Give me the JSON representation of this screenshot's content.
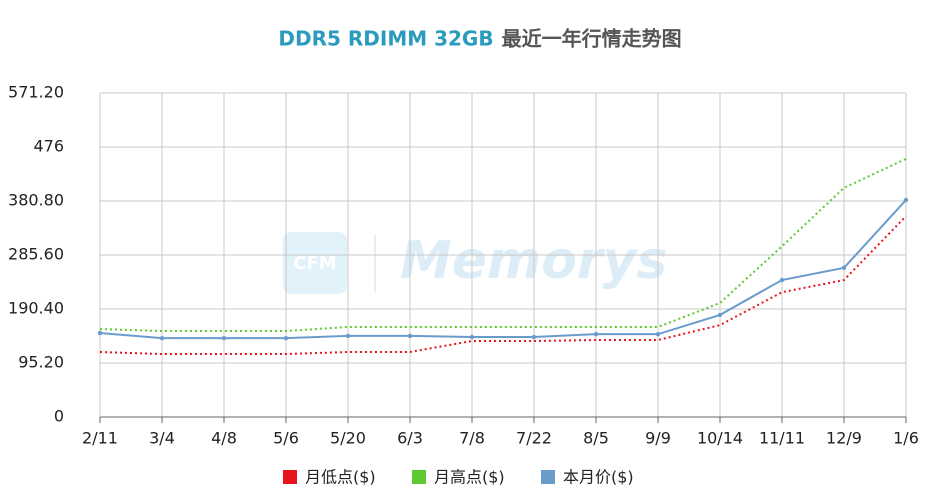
{
  "chart_data": {
    "type": "line",
    "title": [
      "DDR5 RDIMM 32GB",
      "最近一年行情走势图"
    ],
    "title_colors": [
      "#2a9bbf",
      "#555555"
    ],
    "watermark": [
      "CFM",
      "Memorys"
    ],
    "categories": [
      "2/11",
      "3/4",
      "4/8",
      "5/6",
      "5/20",
      "6/3",
      "7/8",
      "7/22",
      "8/5",
      "9/9",
      "10/14",
      "11/11",
      "12/9",
      "1/6"
    ],
    "series": [
      {
        "name": "月低点($)",
        "color": "#e8141b",
        "dashed": true,
        "markers": false,
        "values": [
          114.6,
          111,
          111,
          111,
          114.6,
          114.6,
          134,
          134,
          135.7,
          135.7,
          162,
          220,
          241.5,
          354
        ]
      },
      {
        "name": "月高点($)",
        "color": "#5cc92f",
        "dashed": true,
        "markers": false,
        "values": [
          155,
          151.6,
          151.6,
          151.6,
          158.7,
          158.7,
          158.7,
          158.7,
          158.7,
          158.7,
          201,
          301,
          404,
          455
        ]
      },
      {
        "name": "本月价($)",
        "color": "#6a9ccb",
        "dashed": false,
        "markers": true,
        "values": [
          148,
          139,
          139,
          139,
          143,
          143,
          141,
          141,
          146,
          146,
          180,
          241.5,
          263,
          382.6
        ]
      }
    ],
    "ylim": [
      0,
      571.2
    ],
    "yticks": [
      0,
      {
        "value": 95.2,
        "label": "95.20"
      },
      {
        "value": 190.4,
        "label": "190.40"
      },
      {
        "value": 285.6,
        "label": "285.60"
      },
      {
        "value": 380.8,
        "label": "380.80"
      },
      476,
      {
        "value": 571.2,
        "label": "571.20"
      }
    ],
    "grid": true
  }
}
